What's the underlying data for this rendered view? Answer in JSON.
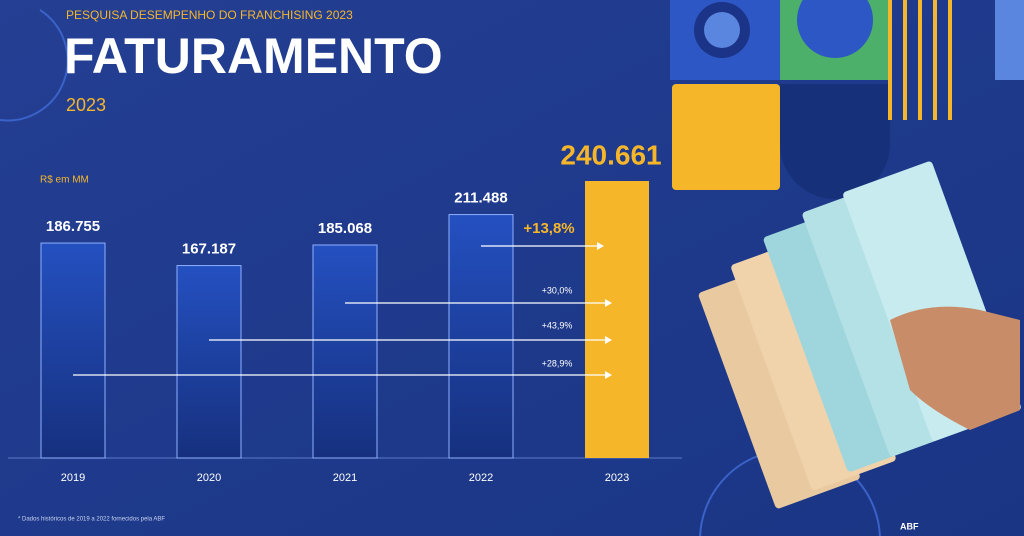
{
  "chart_data": {
    "type": "bar",
    "kicker": "PESQUISA DESEMPENHO DO FRANCHISING 2023",
    "title": "FATURAMENTO",
    "subtitle": "2023",
    "unit_label": "R$ em MM",
    "categories": [
      "2019",
      "2020",
      "2021",
      "2022",
      "2023"
    ],
    "values": [
      186755,
      167187,
      185068,
      211488,
      240661
    ],
    "value_labels": [
      "186.755",
      "167.187",
      "185.068",
      "211.488",
      "240.661"
    ],
    "colors": [
      "#1b3d9c",
      "#1b3d9c",
      "#1b3d9c",
      "#1b3d9c",
      "#f6b62a"
    ],
    "annotations": [
      "+13,8%",
      "+30,0%",
      "+43,9%",
      "+28,9%"
    ],
    "footnote": "* Dados históricos de 2019 a 2022 fornecidos pela ABF",
    "logo": "ABF"
  }
}
